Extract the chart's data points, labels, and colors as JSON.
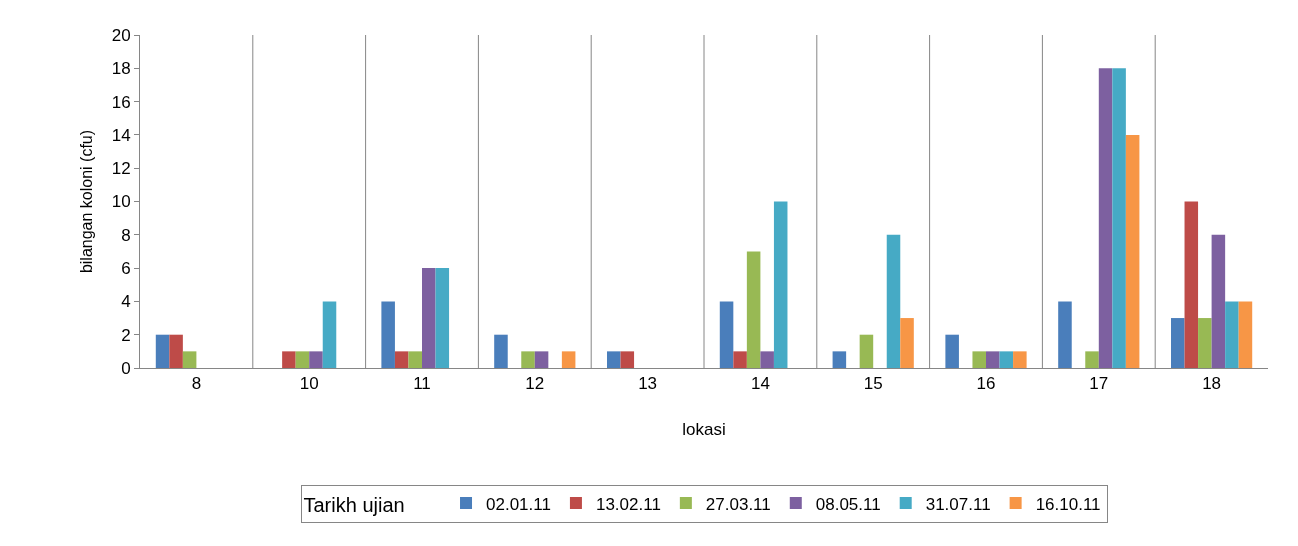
{
  "chart_data": {
    "type": "bar",
    "xlabel": "lokasi",
    "ylabel": "bilangan koloni (cfu)",
    "legend_title": "Tarikh ujian",
    "legend": "bottom",
    "grid": "x",
    "categories": [
      "8",
      "10",
      "11",
      "12",
      "13",
      "14",
      "15",
      "16",
      "17",
      "18"
    ],
    "ylim": [
      0,
      20
    ],
    "yticks": [
      0,
      2,
      4,
      6,
      8,
      10,
      12,
      14,
      16,
      18,
      20
    ],
    "series": [
      {
        "name": "02.01.11",
        "color": "#4a7ebb",
        "values": [
          2,
          0,
          4,
          2,
          1,
          4,
          1,
          2,
          4,
          3
        ]
      },
      {
        "name": "13.02.11",
        "color": "#be4b48",
        "values": [
          2,
          1,
          1,
          0,
          1,
          1,
          0,
          0,
          0,
          10
        ]
      },
      {
        "name": "27.03.11",
        "color": "#98b954",
        "values": [
          1,
          1,
          1,
          1,
          0,
          7,
          2,
          1,
          1,
          3
        ]
      },
      {
        "name": "08.05.11",
        "color": "#7d60a0",
        "values": [
          0,
          1,
          6,
          1,
          0,
          1,
          0,
          1,
          18,
          8
        ]
      },
      {
        "name": "31.07.11",
        "color": "#46aac5",
        "values": [
          0,
          4,
          6,
          0,
          0,
          10,
          8,
          1,
          18,
          4
        ]
      },
      {
        "name": "16.10.11",
        "color": "#f79646",
        "values": [
          0,
          0,
          0,
          1,
          0,
          0,
          3,
          1,
          14,
          4
        ]
      }
    ]
  }
}
